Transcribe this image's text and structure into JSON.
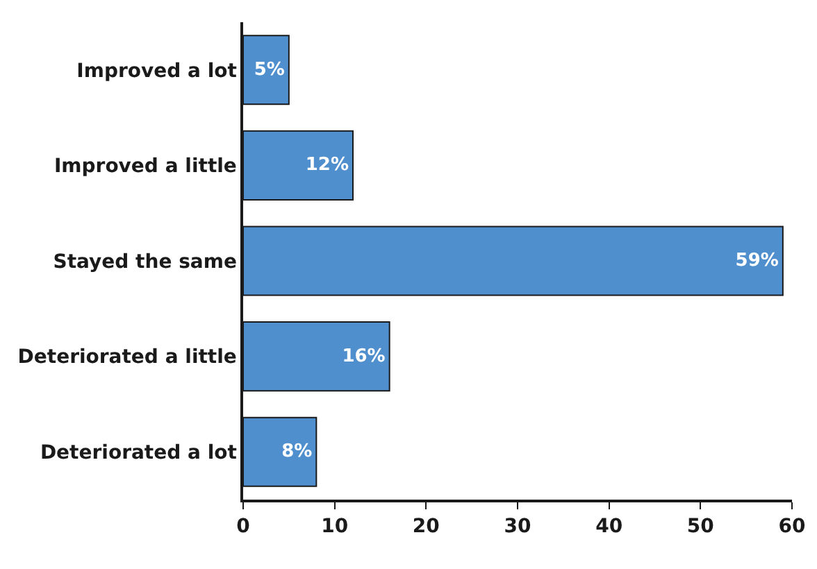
{
  "chart_data": {
    "type": "bar",
    "orientation": "horizontal",
    "categories": [
      "Improved a lot",
      "Improved a little",
      "Stayed the same",
      "Deteriorated a little",
      "Deteriorated a lot"
    ],
    "values": [
      5,
      12,
      59,
      16,
      8
    ],
    "value_labels": [
      "5%",
      "12%",
      "59%",
      "16%",
      "8%"
    ],
    "color": "#4f8fce",
    "xlim": [
      0,
      60
    ],
    "xticks": [
      0,
      10,
      20,
      30,
      40,
      50,
      60
    ],
    "grid": false
  }
}
